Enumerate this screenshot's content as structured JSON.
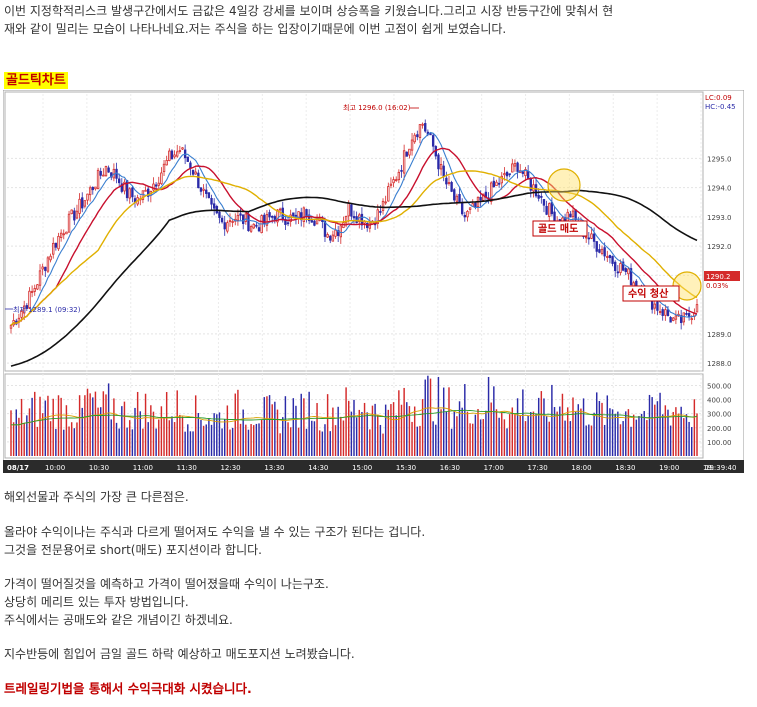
{
  "intro": {
    "line1": "이번 지정학적리스크 발생구간에서도 금값은 4일강 강세를 보이며 상승폭을 키웠습니다.그리고 시장 반등구간에 맞춰서 현",
    "line2": "재와 같이 밀리는 모습이 나타나네요.저는 주식을 하는 입장이기때문에 이번 고점이 쉽게 보였습니다."
  },
  "section_heading": "골드틱차트",
  "chart_data": {
    "type": "candlestick",
    "date_label": "08/17",
    "time_labels": [
      "10:00",
      "10:30",
      "11:00",
      "11:30",
      "12:30",
      "13:30",
      "14:30",
      "15:00",
      "15:30",
      "16:30",
      "17:00",
      "17:30",
      "18:00",
      "18:30",
      "19:00",
      "19:"
    ],
    "clock": "19:39:40",
    "price_axis": {
      "ticks": [
        "1295.0",
        "1294.0",
        "1293.0",
        "1292.0",
        "1291.0",
        "1289.0",
        "1288.0"
      ],
      "ylim": [
        1287.8,
        1297.2
      ]
    },
    "volume_axis": {
      "ticks": [
        "500.00",
        "400.00",
        "300.00",
        "200.00",
        "100.00"
      ],
      "ylim": [
        0,
        560
      ]
    },
    "price_path": [
      1289.3,
      1289.8,
      1290.4,
      1291.2,
      1292.0,
      1292.6,
      1293.1,
      1293.6,
      1294.2,
      1294.7,
      1294.4,
      1293.8,
      1293.6,
      1293.9,
      1294.4,
      1295.0,
      1295.3,
      1294.8,
      1294.0,
      1293.2,
      1292.8,
      1293.0,
      1292.9,
      1292.7,
      1292.8,
      1293.1,
      1293.0,
      1292.9,
      1293.2,
      1292.9,
      1292.4,
      1292.6,
      1293.3,
      1293.0,
      1292.8,
      1293.2,
      1294.0,
      1294.8,
      1295.8,
      1296.2,
      1295.4,
      1294.3,
      1293.6,
      1293.0,
      1293.3,
      1293.7,
      1294.1,
      1294.4,
      1294.8,
      1294.2,
      1293.8,
      1293.2,
      1292.8,
      1293.1,
      1292.6,
      1292.2,
      1291.9,
      1291.5,
      1291.2,
      1290.8,
      1290.4,
      1290.0,
      1289.7,
      1289.4,
      1289.5,
      1290.0
    ],
    "volumes": [
      260,
      300,
      330,
      350,
      340,
      320,
      300,
      390,
      330,
      360,
      300,
      310,
      340,
      290,
      330,
      350,
      310,
      300,
      290,
      270,
      300,
      330,
      310,
      320,
      300,
      280,
      330,
      310,
      350,
      300,
      320,
      350,
      330,
      380,
      310,
      280,
      330,
      410,
      370,
      430,
      390,
      350,
      340,
      380,
      330,
      410,
      360,
      300,
      370,
      330,
      320,
      350,
      400,
      360,
      320,
      330,
      300,
      340,
      310,
      330,
      300,
      360,
      330,
      340,
      300,
      460
    ],
    "annotations": {
      "high": "최고 1296.0 (16:02)",
      "low": "최저 1289.1 (09:32)",
      "sell": "골드 매도",
      "exit": "수익 청산",
      "last_price": "1290.2",
      "last_change": "0.03%",
      "lc": "LC:0.09",
      "hc": "HC:-0.45"
    },
    "colors": {
      "up": "#d42a2a",
      "down": "#2a2aa8",
      "ma_short": "#3a7fd0",
      "ma_mid": "#c8102e",
      "ma_long": "#e0b000",
      "ma_base": "#111111"
    }
  },
  "body_text": {
    "p1": "해외선물과 주식의 가장 큰 다른점은.",
    "p2a": "올라야 수익이나는 주식과 다르게 떨어져도 수익을 낼 수 있는 구조가 된다는 겁니다.",
    "p2b": "그것을 전문용어로 short(매도) 포지션이라 합니다.",
    "p3a": "가격이 떨어질것을 예측하고 가격이 떨어졌을때 수익이 나는구조.",
    "p3b": "상당히 메리트 있는 투자 방법입니다.",
    "p3c": "주식에서는 공매도와 같은 개념이긴 하겠네요.",
    "p4": "지수반등에 힘입어 금일 골드 하락 예상하고 매도포지션 노려봤습니다.",
    "p5": "트레일링기법을 통해서 수익극대화 시켰습니다."
  }
}
